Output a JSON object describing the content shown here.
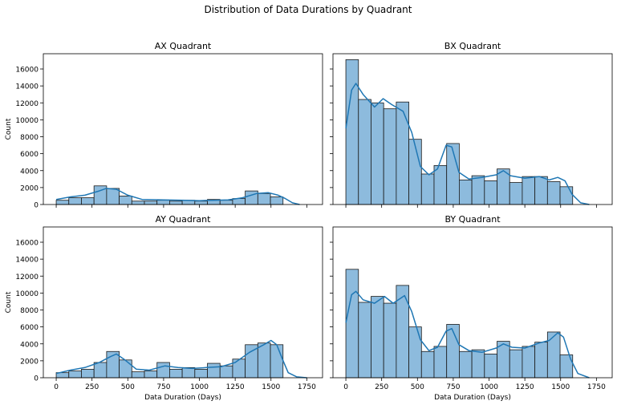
{
  "figure": {
    "suptitle": "Distribution of Data Durations by Quadrant",
    "colors": {
      "bar_fill": "#8dbbdd",
      "bar_edge": "#1a1a1a",
      "kde_line": "#1f77b4",
      "axes": "#000000"
    }
  },
  "chart_data": [
    {
      "type": "bar",
      "title": "AX Quadrant",
      "xlabel": "",
      "ylabel": "Count",
      "bin_edges": [
        0,
        88,
        176,
        264,
        352,
        440,
        528,
        616,
        704,
        792,
        880,
        968,
        1056,
        1144,
        1232,
        1320,
        1408,
        1496,
        1584
      ],
      "values": [
        500,
        800,
        800,
        2200,
        1900,
        1000,
        400,
        400,
        500,
        400,
        500,
        400,
        600,
        500,
        700,
        1600,
        1300,
        900
      ],
      "kde": [
        [
          0,
          600
        ],
        [
          100,
          900
        ],
        [
          200,
          1100
        ],
        [
          300,
          1600
        ],
        [
          350,
          1900
        ],
        [
          420,
          1800
        ],
        [
          500,
          1100
        ],
        [
          600,
          600
        ],
        [
          750,
          550
        ],
        [
          900,
          500
        ],
        [
          1000,
          450
        ],
        [
          1100,
          500
        ],
        [
          1200,
          550
        ],
        [
          1300,
          800
        ],
        [
          1400,
          1300
        ],
        [
          1480,
          1400
        ],
        [
          1550,
          1100
        ],
        [
          1600,
          700
        ],
        [
          1650,
          200
        ],
        [
          1700,
          0
        ]
      ],
      "xlim": [
        -90,
        1860
      ],
      "ylim": [
        0,
        17800
      ],
      "xticks": [
        0,
        250,
        500,
        750,
        1000,
        1250,
        1500,
        1750
      ],
      "yticks": [
        0,
        2000,
        4000,
        6000,
        8000,
        10000,
        12000,
        14000,
        16000
      ],
      "show_xtick_labels": false,
      "show_ytick_labels": true,
      "grid": false,
      "legend": "none"
    },
    {
      "type": "bar",
      "title": "BX Quadrant",
      "xlabel": "",
      "ylabel": "",
      "bin_edges": [
        0,
        88,
        176,
        264,
        352,
        440,
        528,
        616,
        704,
        792,
        880,
        968,
        1056,
        1144,
        1232,
        1320,
        1408,
        1496,
        1584
      ],
      "values": [
        17100,
        12400,
        12000,
        11300,
        12100,
        7700,
        3600,
        4600,
        7200,
        2900,
        3400,
        2800,
        4200,
        2600,
        3300,
        3300,
        2700,
        2100
      ],
      "kde": [
        [
          0,
          9000
        ],
        [
          40,
          13500
        ],
        [
          70,
          14300
        ],
        [
          120,
          13000
        ],
        [
          200,
          11500
        ],
        [
          260,
          12500
        ],
        [
          320,
          11800
        ],
        [
          400,
          11000
        ],
        [
          460,
          8500
        ],
        [
          520,
          4500
        ],
        [
          580,
          3500
        ],
        [
          640,
          4200
        ],
        [
          700,
          7000
        ],
        [
          740,
          6800
        ],
        [
          790,
          3800
        ],
        [
          860,
          3000
        ],
        [
          950,
          3200
        ],
        [
          1050,
          3500
        ],
        [
          1100,
          4000
        ],
        [
          1150,
          3400
        ],
        [
          1250,
          3100
        ],
        [
          1350,
          3300
        ],
        [
          1420,
          2900
        ],
        [
          1480,
          3200
        ],
        [
          1530,
          2800
        ],
        [
          1580,
          1200
        ],
        [
          1640,
          200
        ],
        [
          1700,
          0
        ]
      ],
      "xlim": [
        -90,
        1860
      ],
      "ylim": [
        0,
        17800
      ],
      "xticks": [
        0,
        250,
        500,
        750,
        1000,
        1250,
        1500,
        1750
      ],
      "yticks": [
        0,
        2000,
        4000,
        6000,
        8000,
        10000,
        12000,
        14000,
        16000
      ],
      "show_xtick_labels": false,
      "show_ytick_labels": false,
      "grid": false,
      "legend": "none"
    },
    {
      "type": "bar",
      "title": "AY Quadrant",
      "xlabel": "Data Duration (Days)",
      "ylabel": "Count",
      "bin_edges": [
        0,
        88,
        176,
        264,
        352,
        440,
        528,
        616,
        704,
        792,
        880,
        968,
        1056,
        1144,
        1232,
        1320,
        1408,
        1496,
        1584
      ],
      "values": [
        600,
        800,
        1000,
        1800,
        3100,
        2100,
        700,
        800,
        1800,
        1000,
        1200,
        1000,
        1700,
        1400,
        2200,
        3900,
        4100,
        3900
      ],
      "kde": [
        [
          0,
          500
        ],
        [
          100,
          900
        ],
        [
          200,
          1200
        ],
        [
          300,
          1800
        ],
        [
          380,
          2500
        ],
        [
          420,
          2800
        ],
        [
          480,
          2100
        ],
        [
          560,
          1000
        ],
        [
          650,
          900
        ],
        [
          760,
          1400
        ],
        [
          850,
          1200
        ],
        [
          950,
          1100
        ],
        [
          1050,
          1200
        ],
        [
          1150,
          1300
        ],
        [
          1250,
          1800
        ],
        [
          1350,
          3000
        ],
        [
          1450,
          3900
        ],
        [
          1500,
          4400
        ],
        [
          1540,
          3900
        ],
        [
          1580,
          2200
        ],
        [
          1620,
          600
        ],
        [
          1680,
          100
        ],
        [
          1750,
          0
        ]
      ],
      "xlim": [
        -90,
        1860
      ],
      "ylim": [
        0,
        17800
      ],
      "xticks": [
        0,
        250,
        500,
        750,
        1000,
        1250,
        1500,
        1750
      ],
      "yticks": [
        0,
        2000,
        4000,
        6000,
        8000,
        10000,
        12000,
        14000,
        16000
      ],
      "show_xtick_labels": true,
      "show_ytick_labels": true,
      "grid": false,
      "legend": "none"
    },
    {
      "type": "bar",
      "title": "BY Quadrant",
      "xlabel": "Data Duration (Days)",
      "ylabel": "",
      "bin_edges": [
        0,
        88,
        176,
        264,
        352,
        440,
        528,
        616,
        704,
        792,
        880,
        968,
        1056,
        1144,
        1232,
        1320,
        1408,
        1496,
        1584
      ],
      "values": [
        12800,
        8900,
        9600,
        8800,
        10900,
        6000,
        3100,
        3700,
        6300,
        3100,
        3300,
        2800,
        4300,
        3300,
        3700,
        4200,
        5400,
        2700
      ],
      "kde": [
        [
          0,
          6500
        ],
        [
          40,
          9800
        ],
        [
          70,
          10200
        ],
        [
          120,
          9200
        ],
        [
          200,
          8800
        ],
        [
          270,
          9600
        ],
        [
          330,
          8800
        ],
        [
          410,
          9700
        ],
        [
          460,
          7800
        ],
        [
          520,
          4500
        ],
        [
          580,
          3200
        ],
        [
          640,
          3600
        ],
        [
          700,
          5500
        ],
        [
          740,
          5800
        ],
        [
          790,
          3900
        ],
        [
          860,
          3200
        ],
        [
          950,
          3000
        ],
        [
          1050,
          3500
        ],
        [
          1100,
          4000
        ],
        [
          1160,
          3600
        ],
        [
          1250,
          3500
        ],
        [
          1350,
          4100
        ],
        [
          1420,
          4400
        ],
        [
          1480,
          5300
        ],
        [
          1520,
          4800
        ],
        [
          1570,
          2200
        ],
        [
          1620,
          500
        ],
        [
          1700,
          0
        ]
      ],
      "xlim": [
        -90,
        1860
      ],
      "ylim": [
        0,
        17800
      ],
      "xticks": [
        0,
        250,
        500,
        750,
        1000,
        1250,
        1500,
        1750
      ],
      "yticks": [
        0,
        2000,
        4000,
        6000,
        8000,
        10000,
        12000,
        14000,
        16000
      ],
      "show_xtick_labels": true,
      "show_ytick_labels": false,
      "grid": false,
      "legend": "none"
    }
  ]
}
